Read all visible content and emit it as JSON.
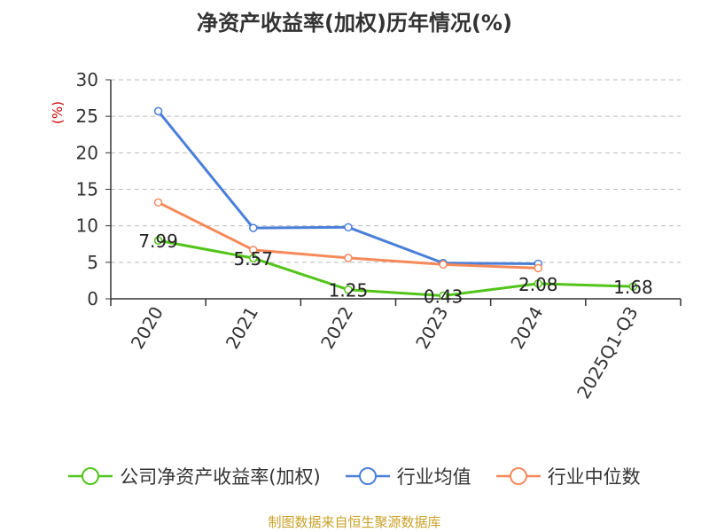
{
  "chart_data": {
    "type": "line",
    "title": "净资产收益率(加权)历年情况(%)",
    "ylabel": "(%)",
    "categories": [
      "2020",
      "2021",
      "2022",
      "2023",
      "2024",
      "2025Q1-Q3"
    ],
    "ylim": [
      0,
      30
    ],
    "yticks": [
      0,
      5,
      10,
      15,
      20,
      25,
      30
    ],
    "grid": true,
    "legend_position": "bottom",
    "series": [
      {
        "name": "公司净资产收益率(加权)",
        "color": "#52c41a",
        "values": [
          7.99,
          5.57,
          1.25,
          0.43,
          2.08,
          1.68
        ],
        "labels": [
          "7.99",
          "5.57",
          "1.25",
          "0.43",
          "2.08",
          "1.68"
        ]
      },
      {
        "name": "行业均值",
        "color": "#4a7fd9",
        "values": [
          25.7,
          9.7,
          9.8,
          4.9,
          4.8,
          null
        ]
      },
      {
        "name": "行业中位数",
        "color": "#f5895a",
        "values": [
          13.2,
          6.7,
          5.6,
          4.7,
          4.2,
          null
        ]
      }
    ]
  },
  "footer": "制图数据来自恒生聚源数据库"
}
